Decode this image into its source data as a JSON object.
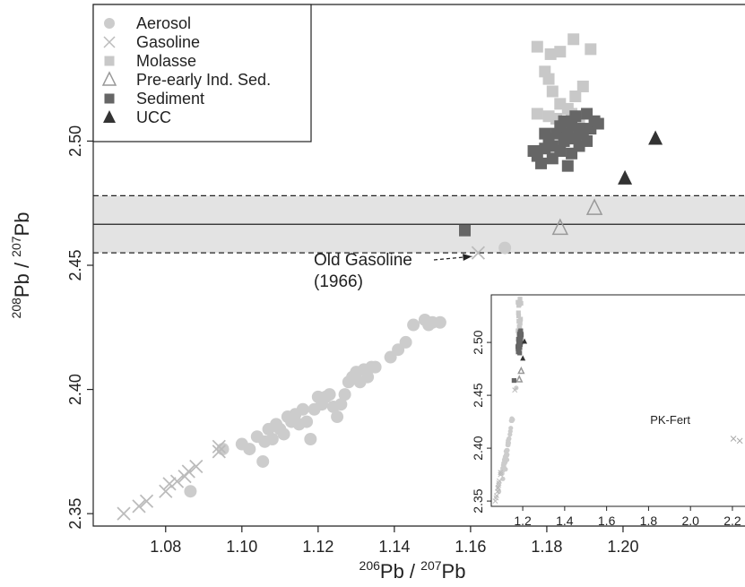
{
  "chart_data": [
    {
      "type": "scatter",
      "xlabel": "206Pb / 207Pb",
      "ylabel": "208Pb / 207Pb",
      "xlim": [
        1.061,
        1.232
      ],
      "ylim": [
        2.345,
        2.555
      ],
      "x_ticks": [
        "1.08",
        "1.10",
        "1.12",
        "1.14",
        "1.16",
        "1.18",
        "1.20"
      ],
      "y_ticks": [
        "2.35",
        "2.40",
        "2.45",
        "2.50"
      ],
      "grid": false,
      "legend_position": "top-left",
      "band": {
        "center": 2.4665,
        "lower": 2.455,
        "upper": 2.478
      },
      "annotation": {
        "line1": "Old Gasoline",
        "line2": "(1966)",
        "target": [
          1.162,
          2.455
        ]
      },
      "series": [
        {
          "name": "Aerosol",
          "marker": "circle",
          "color": "#cccccc",
          "points": [
            [
              1.0865,
              2.359
            ],
            [
              1.095,
              2.376
            ],
            [
              1.1,
              2.378
            ],
            [
              1.102,
              2.376
            ],
            [
              1.104,
              2.381
            ],
            [
              1.1055,
              2.371
            ],
            [
              1.106,
              2.379
            ],
            [
              1.107,
              2.384
            ],
            [
              1.108,
              2.38
            ],
            [
              1.109,
              2.386
            ],
            [
              1.11,
              2.384
            ],
            [
              1.111,
              2.382
            ],
            [
              1.112,
              2.389
            ],
            [
              1.113,
              2.387
            ],
            [
              1.114,
              2.39
            ],
            [
              1.115,
              2.386
            ],
            [
              1.116,
              2.392
            ],
            [
              1.117,
              2.387
            ],
            [
              1.118,
              2.38
            ],
            [
              1.119,
              2.392
            ],
            [
              1.12,
              2.397
            ],
            [
              1.121,
              2.394
            ],
            [
              1.122,
              2.397
            ],
            [
              1.123,
              2.398
            ],
            [
              1.124,
              2.393
            ],
            [
              1.125,
              2.389
            ],
            [
              1.126,
              2.394
            ],
            [
              1.127,
              2.398
            ],
            [
              1.128,
              2.403
            ],
            [
              1.129,
              2.405
            ],
            [
              1.13,
              2.407
            ],
            [
              1.131,
              2.403
            ],
            [
              1.132,
              2.408
            ],
            [
              1.133,
              2.405
            ],
            [
              1.134,
              2.409
            ],
            [
              1.135,
              2.409
            ],
            [
              1.139,
              2.413
            ],
            [
              1.141,
              2.416
            ],
            [
              1.143,
              2.419
            ],
            [
              1.145,
              2.426
            ],
            [
              1.148,
              2.428
            ],
            [
              1.149,
              2.426
            ],
            [
              1.15,
              2.427
            ],
            [
              1.152,
              2.427
            ],
            [
              1.169,
              2.457
            ]
          ]
        },
        {
          "name": "Gasoline",
          "marker": "x",
          "color": "#bbbbbb",
          "points": [
            [
              1.069,
              2.35
            ],
            [
              1.073,
              2.353
            ],
            [
              1.075,
              2.355
            ],
            [
              1.08,
              2.359
            ],
            [
              1.081,
              2.362
            ],
            [
              1.083,
              2.363
            ],
            [
              1.085,
              2.365
            ],
            [
              1.086,
              2.367
            ],
            [
              1.088,
              2.369
            ],
            [
              1.094,
              2.375
            ],
            [
              1.094,
              2.377
            ],
            [
              1.162,
              2.455
            ]
          ]
        },
        {
          "name": "Molasse",
          "marker": "square",
          "color": "#c8c8c8",
          "points": [
            [
              1.1775,
              2.538
            ],
            [
              1.1795,
              2.528
            ],
            [
              1.1805,
              2.525
            ],
            [
              1.181,
              2.535
            ],
            [
              1.1835,
              2.536
            ],
            [
              1.187,
              2.541
            ],
            [
              1.1915,
              2.537
            ],
            [
              1.1775,
              2.511
            ],
            [
              1.1805,
              2.51
            ],
            [
              1.1815,
              2.52
            ],
            [
              1.1835,
              2.515
            ],
            [
              1.1855,
              2.513
            ],
            [
              1.1875,
              2.518
            ],
            [
              1.1895,
              2.522
            ],
            [
              1.1825,
              2.509
            ],
            [
              1.1845,
              2.506
            ],
            [
              1.1865,
              2.511
            ],
            [
              1.1885,
              2.509
            ]
          ]
        },
        {
          "name": "Pre-early Ind. Sed.",
          "marker": "triangle-open",
          "color": "#999999",
          "points": [
            [
              1.1835,
              2.465
            ],
            [
              1.1925,
              2.473
            ]
          ]
        },
        {
          "name": "Sediment",
          "marker": "square",
          "color": "#666666",
          "points": [
            [
              1.1585,
              2.464
            ],
            [
              1.1765,
              2.496
            ],
            [
              1.1775,
              2.494
            ],
            [
              1.1785,
              2.491
            ],
            [
              1.1795,
              2.497
            ],
            [
              1.1805,
              2.501
            ],
            [
              1.1815,
              2.498
            ],
            [
              1.1825,
              2.503
            ],
            [
              1.1835,
              2.496
            ],
            [
              1.1835,
              2.506
            ],
            [
              1.1845,
              2.5
            ],
            [
              1.1845,
              2.508
            ],
            [
              1.1855,
              2.503
            ],
            [
              1.1855,
              2.49
            ],
            [
              1.1865,
              2.506
            ],
            [
              1.1865,
              2.495
            ],
            [
              1.1875,
              2.501
            ],
            [
              1.1875,
              2.51
            ],
            [
              1.1885,
              2.498
            ],
            [
              1.1885,
              2.505
            ],
            [
              1.1895,
              2.503
            ],
            [
              1.1905,
              2.5
            ],
            [
              1.1905,
              2.511
            ],
            [
              1.1915,
              2.505
            ],
            [
              1.1925,
              2.508
            ],
            [
              1.1935,
              2.507
            ],
            [
              1.1795,
              2.503
            ],
            [
              1.1815,
              2.493
            ]
          ]
        },
        {
          "name": "UCC",
          "marker": "triangle",
          "color": "#333333",
          "points": [
            [
              1.2005,
              2.485
            ],
            [
              1.2085,
              2.501
            ]
          ]
        }
      ]
    },
    {
      "type": "scatter",
      "xlim": [
        1.05,
        2.26
      ],
      "ylim": [
        2.345,
        2.545
      ],
      "x_ticks": [
        "1.2",
        "1.4",
        "1.6",
        "1.8",
        "2.0",
        "2.2"
      ],
      "y_ticks": [
        "2.35",
        "2.40",
        "2.45",
        "2.50"
      ],
      "annotation": {
        "text": "PK-Fert",
        "points": [
          [
            2.205,
            2.409
          ],
          [
            2.235,
            2.407
          ]
        ]
      }
    }
  ]
}
